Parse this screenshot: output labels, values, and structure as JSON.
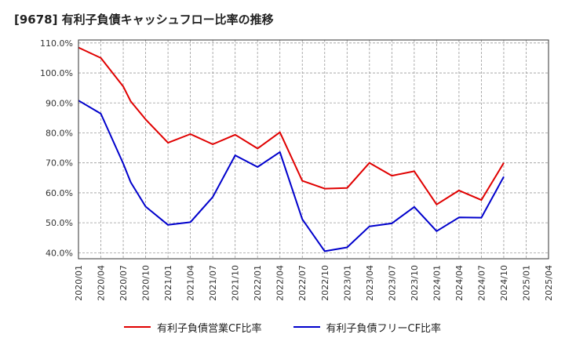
{
  "chart_data": {
    "type": "line",
    "title": "[9678]  有利子負債キャッシュフロー比率の推移",
    "x": [
      "2020/01",
      "2020/04",
      "2020/07",
      "2020/10",
      "2021/01",
      "2021/04",
      "2021/07",
      "2021/10",
      "2022/01",
      "2022/04",
      "2022/07",
      "2022/10",
      "2023/01",
      "2023/04",
      "2023/07",
      "2023/10",
      "2024/01",
      "2024/04",
      "2024/07",
      "2024/10",
      "2025/01",
      "2025/04"
    ],
    "y_ticks": [
      "40.0%",
      "50.0%",
      "60.0%",
      "70.0%",
      "80.0%",
      "90.0%",
      "100.0%",
      "110.0%"
    ],
    "ylim": [
      38,
      111
    ],
    "grid": true,
    "legend_position": "bottom",
    "series": [
      {
        "name": "有利子負債営業CF比率",
        "color": "#e00000",
        "x": [
          "2020/01",
          "2020/04",
          "2020/07",
          "2020/08",
          "2020/10",
          "2021/01",
          "2021/04",
          "2021/07",
          "2021/10",
          "2022/01",
          "2022/04",
          "2022/07",
          "2022/10",
          "2023/01",
          "2023/04",
          "2023/07",
          "2023/10",
          "2024/01",
          "2024/04",
          "2024/07",
          "2024/10"
        ],
        "values": [
          108.5,
          105.0,
          95.5,
          90.5,
          84.5,
          76.7,
          79.6,
          76.2,
          79.4,
          74.8,
          80.2,
          64.0,
          61.4,
          61.6,
          70.0,
          65.7,
          67.2,
          56.1,
          60.8,
          57.6,
          70.0
        ]
      },
      {
        "name": "有利子負債フリーCF比率",
        "color": "#0000cc",
        "x": [
          "2020/01",
          "2020/04",
          "2020/07",
          "2020/08",
          "2020/10",
          "2021/01",
          "2021/04",
          "2021/07",
          "2021/10",
          "2022/01",
          "2022/04",
          "2022/07",
          "2022/10",
          "2023/01",
          "2023/04",
          "2023/07",
          "2023/10",
          "2024/01",
          "2024/04",
          "2024/07",
          "2024/10"
        ],
        "values": [
          90.8,
          86.4,
          69.8,
          63.5,
          55.4,
          49.3,
          50.2,
          58.6,
          72.5,
          68.6,
          73.6,
          51.2,
          40.5,
          41.8,
          48.8,
          49.8,
          55.3,
          47.2,
          51.8,
          51.7,
          65.4
        ]
      }
    ]
  }
}
